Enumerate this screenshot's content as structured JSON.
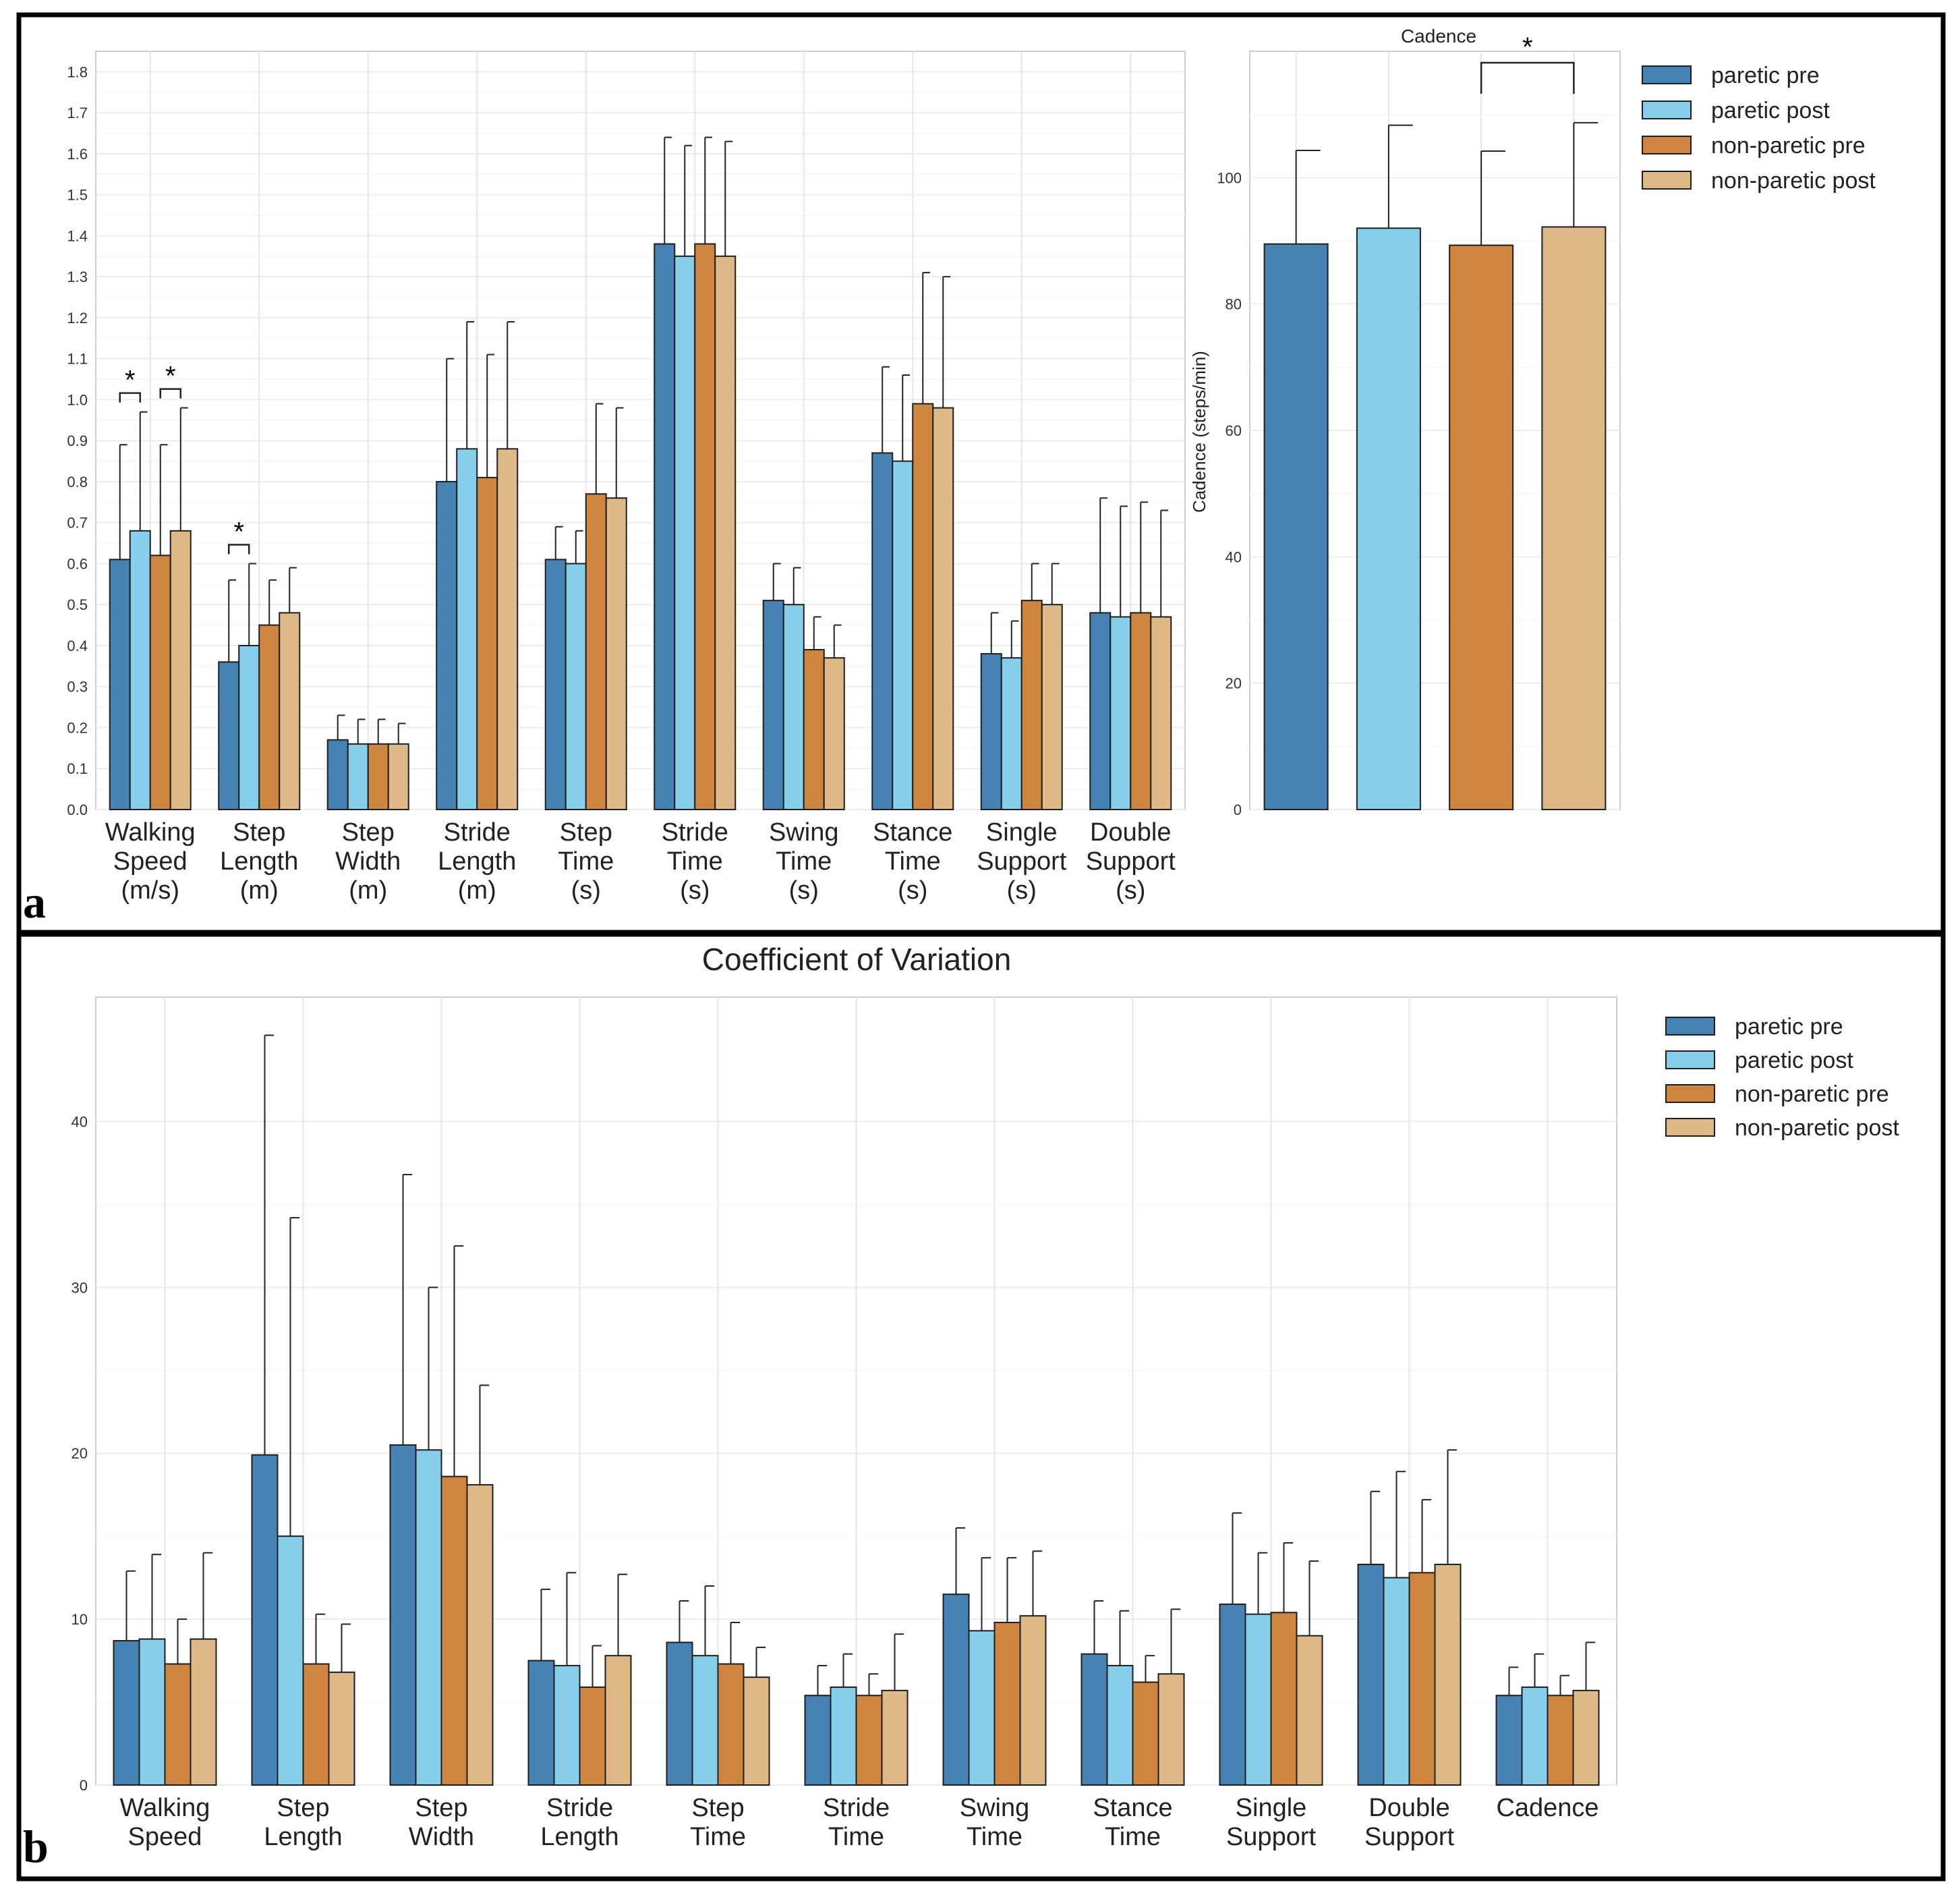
{
  "panels": {
    "a_letter": "a",
    "b_letter": "b"
  },
  "series": [
    {
      "name": "paretic pre",
      "color": "#4682B4"
    },
    {
      "name": "paretic post",
      "color": "#87CEEB"
    },
    {
      "name": "non-paretic pre",
      "color": "#CD853F"
    },
    {
      "name": "non-paretic post",
      "color": "#DEB887"
    }
  ],
  "chart_data": [
    {
      "id": "gait_parameters",
      "type": "bar",
      "title": "",
      "xlabel": "",
      "ylabel": "",
      "ylim": [
        0,
        1.85
      ],
      "yticks": [
        0.0,
        0.1,
        0.2,
        0.3,
        0.4,
        0.5,
        0.6,
        0.7,
        0.8,
        0.9,
        1.0,
        1.1,
        1.2,
        1.3,
        1.4,
        1.5,
        1.6,
        1.7,
        1.8
      ],
      "grid": true,
      "categories": [
        [
          "Walking",
          "Speed",
          "(m/s)"
        ],
        [
          "Step",
          "Length",
          "(m)"
        ],
        [
          "Step",
          "Width",
          "(m)"
        ],
        [
          "Stride",
          "Length",
          "(m)"
        ],
        [
          "Step",
          "Time",
          "(s)"
        ],
        [
          "Stride",
          "Time",
          "(s)"
        ],
        [
          "Swing",
          "Time",
          "(s)"
        ],
        [
          "Stance",
          "Time",
          "(s)"
        ],
        [
          "Single",
          "Support",
          "(s)"
        ],
        [
          "Double",
          "Support",
          "(s)"
        ]
      ],
      "series": [
        {
          "name": "paretic pre",
          "values": [
            0.61,
            0.36,
            0.17,
            0.8,
            0.61,
            1.38,
            0.51,
            0.87,
            0.38,
            0.48
          ],
          "err_top": [
            0.89,
            0.56,
            0.23,
            1.1,
            0.69,
            1.64,
            0.6,
            1.08,
            0.48,
            0.76
          ]
        },
        {
          "name": "paretic post",
          "values": [
            0.68,
            0.4,
            0.16,
            0.88,
            0.6,
            1.35,
            0.5,
            0.85,
            0.37,
            0.47
          ],
          "err_top": [
            0.97,
            0.6,
            0.22,
            1.19,
            0.68,
            1.62,
            0.59,
            1.06,
            0.46,
            0.74
          ]
        },
        {
          "name": "non-paretic pre",
          "values": [
            0.62,
            0.45,
            0.16,
            0.81,
            0.77,
            1.38,
            0.39,
            0.99,
            0.51,
            0.48
          ],
          "err_top": [
            0.89,
            0.56,
            0.22,
            1.11,
            0.99,
            1.64,
            0.47,
            1.31,
            0.6,
            0.75
          ]
        },
        {
          "name": "non-paretic post",
          "values": [
            0.68,
            0.48,
            0.16,
            0.88,
            0.76,
            1.35,
            0.37,
            0.98,
            0.5,
            0.47
          ],
          "err_top": [
            0.98,
            0.59,
            0.21,
            1.19,
            0.98,
            1.63,
            0.45,
            1.3,
            0.6,
            0.73
          ]
        }
      ],
      "annotations": [
        {
          "category": 0,
          "between": [
            0,
            1
          ],
          "text": "*"
        },
        {
          "category": 0,
          "between": [
            2,
            3
          ],
          "text": "*"
        },
        {
          "category": 1,
          "between": [
            0,
            1
          ],
          "text": "*"
        }
      ]
    },
    {
      "id": "cadence",
      "type": "bar",
      "title": "Cadence",
      "xlabel": "",
      "ylabel": "Cadence (steps/min)",
      "ylim": [
        0,
        120
      ],
      "yticks": [
        0,
        20,
        40,
        60,
        80,
        100
      ],
      "grid": true,
      "categories": [
        "paretic pre",
        "paretic post",
        "non-paretic pre",
        "non-paretic post"
      ],
      "values": [
        89.5,
        92.0,
        89.3,
        92.2
      ],
      "err_top": [
        104.3,
        108.3,
        104.2,
        108.7
      ],
      "legend": "top-right",
      "annotations": [
        {
          "between": [
            2,
            3
          ],
          "text": "*"
        }
      ]
    },
    {
      "id": "coefficient_of_variation",
      "type": "bar",
      "title": "Coefficient of Variation",
      "xlabel": "",
      "ylabel": "",
      "ylim": [
        0,
        47.5
      ],
      "yticks": [
        0,
        10,
        20,
        30,
        40
      ],
      "grid": true,
      "legend": "top-right",
      "categories": [
        [
          "Walking",
          "Speed"
        ],
        [
          "Step",
          "Length"
        ],
        [
          "Step",
          "Width"
        ],
        [
          "Stride",
          "Length"
        ],
        [
          "Step",
          "Time"
        ],
        [
          "Stride",
          "Time"
        ],
        [
          "Swing",
          "Time"
        ],
        [
          "Stance",
          "Time"
        ],
        [
          "Single",
          "Support"
        ],
        [
          "Double",
          "Support"
        ],
        [
          "Cadence"
        ]
      ],
      "series": [
        {
          "name": "paretic pre",
          "values": [
            8.7,
            19.9,
            20.5,
            7.5,
            8.6,
            5.4,
            11.5,
            7.9,
            10.9,
            13.3,
            5.4
          ],
          "err_top": [
            12.9,
            45.2,
            36.8,
            11.8,
            11.1,
            7.2,
            15.5,
            11.1,
            16.4,
            17.7,
            7.1
          ]
        },
        {
          "name": "paretic post",
          "values": [
            8.8,
            15.0,
            20.2,
            7.2,
            7.8,
            5.9,
            9.3,
            7.2,
            10.3,
            12.5,
            5.9
          ],
          "err_top": [
            13.9,
            34.2,
            30.0,
            12.8,
            12.0,
            7.9,
            13.7,
            10.5,
            14.0,
            18.9,
            7.9
          ]
        },
        {
          "name": "non-paretic pre",
          "values": [
            7.3,
            7.3,
            18.6,
            5.9,
            7.3,
            5.4,
            9.8,
            6.2,
            10.4,
            12.8,
            5.4
          ],
          "err_top": [
            10.0,
            10.3,
            32.5,
            8.4,
            9.8,
            6.7,
            13.7,
            7.8,
            14.6,
            17.2,
            6.6
          ]
        },
        {
          "name": "non-paretic post",
          "values": [
            8.8,
            6.8,
            18.1,
            7.8,
            6.5,
            5.7,
            10.2,
            6.7,
            9.0,
            13.3,
            5.7
          ],
          "err_top": [
            14.0,
            9.7,
            24.1,
            12.7,
            8.3,
            9.1,
            14.1,
            10.6,
            13.5,
            20.2,
            8.6
          ]
        }
      ]
    }
  ]
}
